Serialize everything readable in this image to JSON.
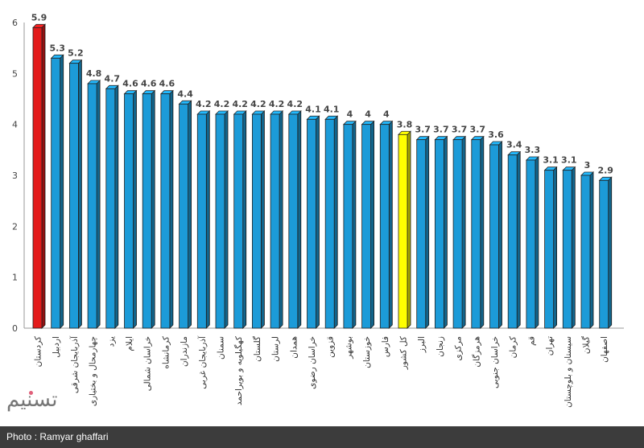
{
  "chart_data": {
    "type": "bar",
    "title": "",
    "xlabel": "",
    "ylabel": "",
    "ylim": [
      0,
      6
    ],
    "yticks": [
      "0",
      "1",
      "2",
      "3",
      "4",
      "5",
      "6"
    ],
    "grid": false,
    "categories": [
      "کردستان",
      "اردبیل",
      "آذربایجان شرقی",
      "چهارمحال و بختیاری",
      "یزد",
      "ایلام",
      "خراسان شمالی",
      "کرمانشاه",
      "مازندران",
      "آذربایجان غربی",
      "سمنان",
      "کهگیلویه و بویراحمد",
      "گلستان",
      "لرستان",
      "همدان",
      "خراسان رضوی",
      "قزوین",
      "بوشهر",
      "خوزستان",
      "فارس",
      "کل کشور",
      "البرز",
      "زنجان",
      "مرکزی",
      "هرمزگان",
      "خراسان جنوبی",
      "کرمان",
      "قم",
      "تهران",
      "سیستان و بلوچستان",
      "گیلان",
      "اصفهان"
    ],
    "values": [
      5.9,
      5.3,
      5.2,
      4.8,
      4.7,
      4.6,
      4.6,
      4.6,
      4.4,
      4.2,
      4.2,
      4.2,
      4.2,
      4.2,
      4.2,
      4.1,
      4.1,
      4,
      4,
      4,
      3.8,
      3.7,
      3.7,
      3.7,
      3.7,
      3.6,
      3.4,
      3.3,
      3.1,
      3.1,
      3,
      2.9
    ],
    "highlight": {
      "0": "#e31b1b",
      "20": "#ffff00"
    },
    "default_color": "#1c9bd8"
  },
  "footer": {
    "credit": "Photo : Ramyar ghaffari"
  },
  "logo": {
    "text": "تسنیم"
  }
}
